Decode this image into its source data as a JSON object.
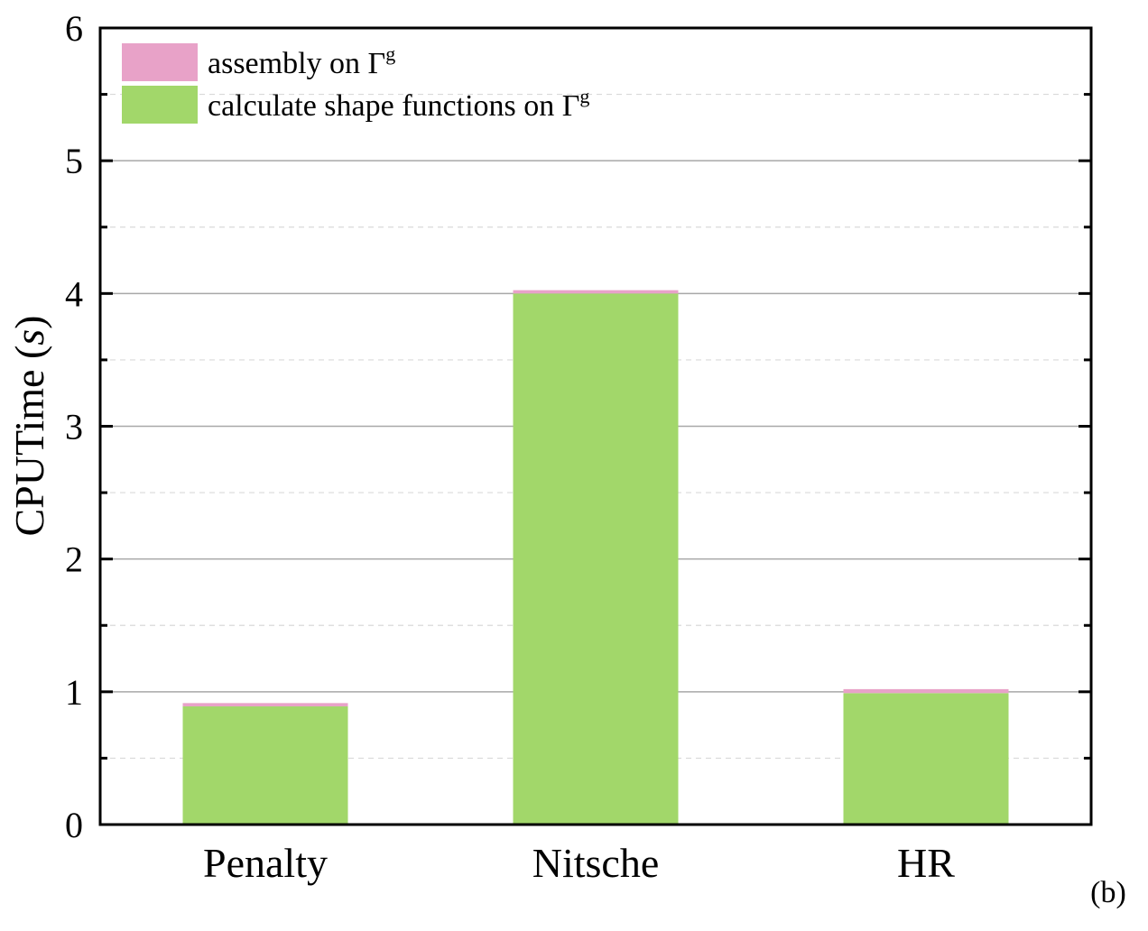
{
  "chart_data": {
    "type": "bar",
    "stacked": true,
    "categories": [
      "Penalty",
      "Nitsche",
      "HR"
    ],
    "series": [
      {
        "name": "calculate shape functions on Γ",
        "name_superscript": "g",
        "color": "#a2d76a",
        "values": [
          0.89,
          4.0,
          0.99
        ]
      },
      {
        "name": "assembly on Γ",
        "name_superscript": "g",
        "color": "#e8a2c8",
        "values": [
          0.025,
          0.025,
          0.03
        ]
      }
    ],
    "ylabel": "CPUTime (",
    "ylabel_italic": "s",
    "ylabel_close": ")",
    "ylim": [
      0,
      6
    ],
    "yticks": [
      "0",
      "1",
      "2",
      "3",
      "4",
      "5",
      "6"
    ],
    "grid": {
      "major": true,
      "minor": true
    },
    "legend_position": "top-left",
    "panel_label": "(b)"
  }
}
